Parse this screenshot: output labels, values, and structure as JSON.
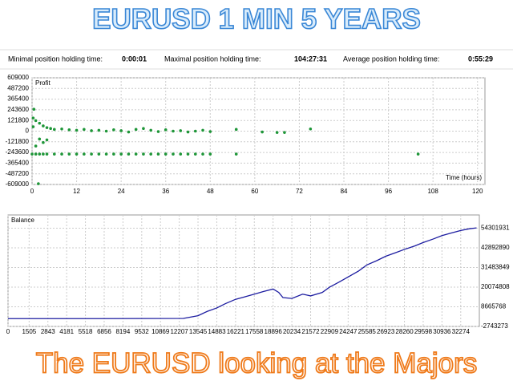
{
  "header": {
    "title": "EURUSD 1 MIN 5 YEARS",
    "footer": "The EURUSD looking at the Majors"
  },
  "stats": [
    {
      "label": "Minimal position holding time:",
      "value": "0:00:01"
    },
    {
      "label": "Maximal position holding time:",
      "value": "104:27:31"
    },
    {
      "label": "Average position holding time:",
      "value": "0:55:29"
    }
  ],
  "chart_data": [
    {
      "type": "scatter",
      "title": "Profit",
      "x_label": "Time (hours)",
      "color": "#1e9638",
      "grid": true,
      "xlim": [
        0,
        122
      ],
      "xticks": [
        0,
        12,
        24,
        36,
        48,
        60,
        72,
        84,
        96,
        108,
        120
      ],
      "ylim": [
        -609000,
        609000
      ],
      "yticks": [
        609000,
        487200,
        365400,
        243600,
        121800,
        0,
        -121800,
        -243600,
        -365400,
        -487200,
        -609000
      ],
      "x": [
        0.3,
        1,
        2,
        3,
        4,
        5,
        6,
        8,
        10,
        12,
        14,
        16,
        18,
        20,
        22,
        24,
        26,
        28,
        30,
        32,
        34,
        36,
        38,
        40,
        42,
        44,
        46,
        48,
        55,
        62,
        66,
        68,
        75,
        0,
        1,
        2,
        3,
        4,
        6,
        8,
        10,
        12,
        14,
        16,
        18,
        20,
        22,
        24,
        26,
        28,
        30,
        32,
        34,
        36,
        38,
        40,
        42,
        44,
        46,
        48,
        55,
        104,
        0.5,
        0.3,
        2,
        3,
        1,
        4,
        1.7
      ],
      "values": [
        50000,
        120000,
        90000,
        60000,
        40000,
        30000,
        20000,
        25000,
        15000,
        10000,
        20000,
        5000,
        10000,
        0,
        15000,
        5000,
        -10000,
        20000,
        30000,
        10000,
        -5000,
        15000,
        0,
        5000,
        -10000,
        0,
        10000,
        -5000,
        20000,
        -10000,
        -15000,
        -15000,
        25000,
        -262000,
        -262000,
        -262000,
        -262000,
        -262000,
        -262000,
        -262000,
        -262000,
        -262000,
        -262000,
        -262000,
        -262000,
        -262000,
        -262000,
        -262000,
        -262000,
        -262000,
        -262000,
        -262000,
        -262000,
        -262000,
        -262000,
        -262000,
        -262000,
        -262000,
        -262000,
        -262000,
        -262000,
        -262000,
        250000,
        150000,
        -90000,
        -130000,
        -170000,
        -100000,
        -600000
      ]
    },
    {
      "type": "line",
      "title": "Balance",
      "color": "#1c1ca0",
      "grid": true,
      "xlim": [
        0,
        33600
      ],
      "xticks": [
        0,
        1505,
        2843,
        4181,
        5518,
        6856,
        8194,
        9532,
        10869,
        12207,
        13545,
        14883,
        16221,
        17558,
        18896,
        20234,
        21572,
        22909,
        24247,
        25585,
        26923,
        28260,
        29598,
        30936,
        32274
      ],
      "ylim": [
        -2743273,
        62000000
      ],
      "yticks": [
        54301931,
        42892890,
        31483849,
        20074808,
        8665768,
        -2743273
      ],
      "x": [
        0,
        6000,
        12500,
        13545,
        14200,
        14883,
        15500,
        16221,
        16900,
        17558,
        18200,
        18896,
        19300,
        19600,
        20234,
        21000,
        21572,
        22400,
        22909,
        23600,
        24247,
        25000,
        25585,
        26300,
        26923,
        27600,
        28260,
        29000,
        29598,
        30300,
        30936,
        31600,
        32274,
        32900,
        33400
      ],
      "values": [
        1800000,
        1800000,
        1900000,
        3500000,
        6000000,
        8000000,
        10500000,
        13000000,
        14500000,
        16000000,
        17500000,
        19000000,
        17000000,
        14000000,
        13500000,
        16000000,
        15000000,
        17000000,
        20000000,
        23000000,
        26000000,
        29500000,
        33000000,
        35500000,
        38000000,
        40000000,
        42000000,
        44000000,
        46000000,
        48000000,
        50000000,
        51500000,
        53000000,
        54000000,
        54500000
      ]
    }
  ]
}
